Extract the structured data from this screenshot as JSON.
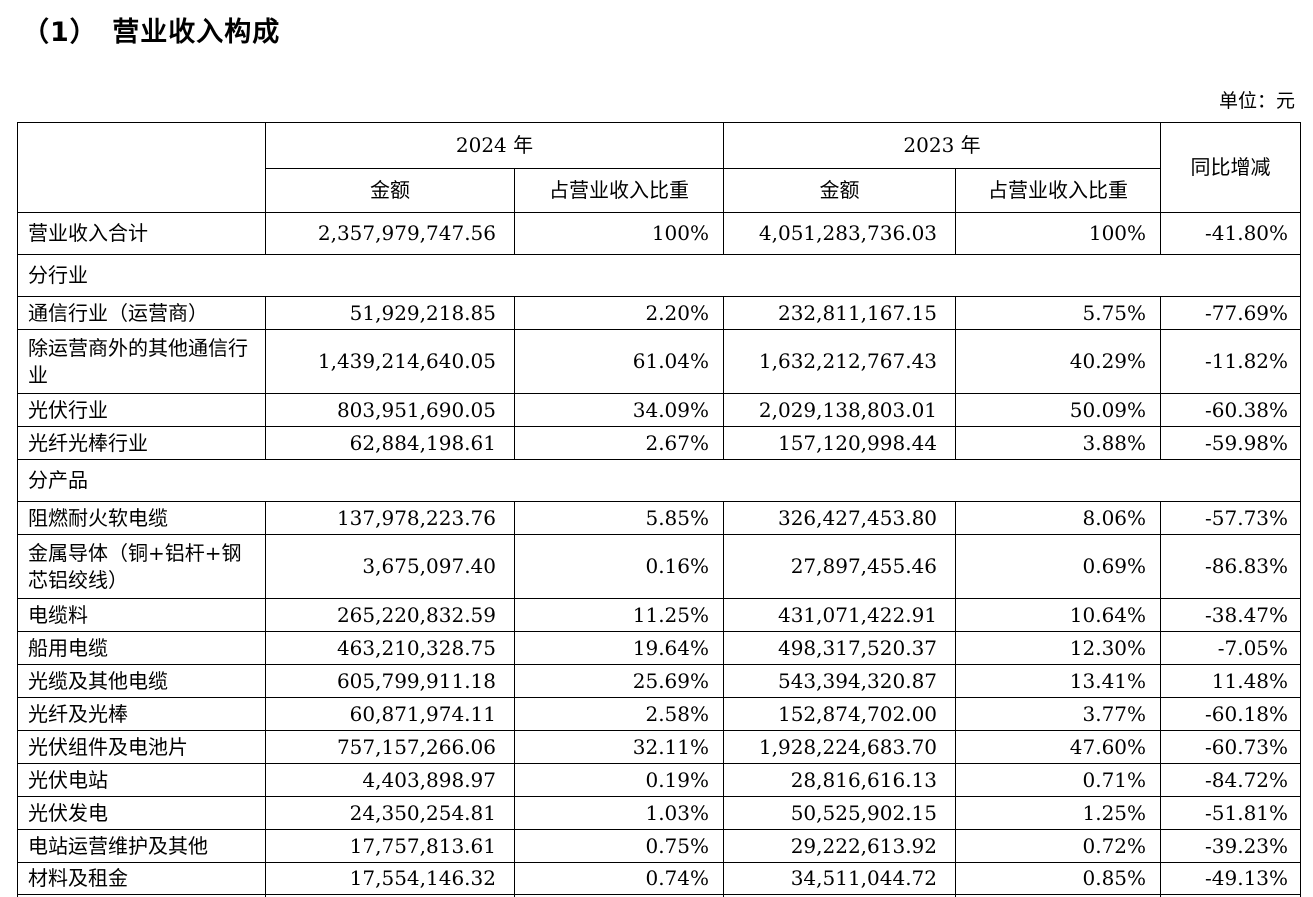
{
  "page": {
    "title": "（1）　营业收入构成",
    "unit_label": "单位：元"
  },
  "table": {
    "header": {
      "year_2024": "2024 年",
      "year_2023": "2023 年",
      "amount_2024": "金额",
      "proportion_2024": "占营业收入比重",
      "amount_2023": "金额",
      "proportion_2023": "占营业收入比重",
      "yoy": "同比增减"
    },
    "rows": [
      {
        "type": "total",
        "label": "营业收入合计",
        "a2024": "2,357,979,747.56",
        "p2024": "100%",
        "a2023": "4,051,283,736.03",
        "p2023": "100%",
        "yoy": "-41.80%"
      },
      {
        "type": "section",
        "label": "分行业"
      },
      {
        "type": "data",
        "label": "通信行业（运营商）",
        "a2024": "51,929,218.85",
        "p2024": "2.20%",
        "a2023": "232,811,167.15",
        "p2023": "5.75%",
        "yoy": "-77.69%"
      },
      {
        "type": "data",
        "label": "除运营商外的其他通信行业",
        "a2024": "1,439,214,640.05",
        "p2024": "61.04%",
        "a2023": "1,632,212,767.43",
        "p2023": "40.29%",
        "yoy": "-11.82%"
      },
      {
        "type": "data",
        "label": "光伏行业",
        "a2024": "803,951,690.05",
        "p2024": "34.09%",
        "a2023": "2,029,138,803.01",
        "p2023": "50.09%",
        "yoy": "-60.38%"
      },
      {
        "type": "data",
        "label": "光纤光棒行业",
        "a2024": "62,884,198.61",
        "p2024": "2.67%",
        "a2023": "157,120,998.44",
        "p2023": "3.88%",
        "yoy": "-59.98%"
      },
      {
        "type": "section",
        "label": "分产品"
      },
      {
        "type": "data",
        "label": "阻燃耐火软电缆",
        "a2024": "137,978,223.76",
        "p2024": "5.85%",
        "a2023": "326,427,453.80",
        "p2023": "8.06%",
        "yoy": "-57.73%"
      },
      {
        "type": "data",
        "label": "金属导体（铜+铝杆+钢芯铝绞线）",
        "a2024": "3,675,097.40",
        "p2024": "0.16%",
        "a2023": "27,897,455.46",
        "p2023": "0.69%",
        "yoy": "-86.83%"
      },
      {
        "type": "data",
        "label": "电缆料",
        "a2024": "265,220,832.59",
        "p2024": "11.25%",
        "a2023": "431,071,422.91",
        "p2023": "10.64%",
        "yoy": "-38.47%"
      },
      {
        "type": "data",
        "label": "船用电缆",
        "a2024": "463,210,328.75",
        "p2024": "19.64%",
        "a2023": "498,317,520.37",
        "p2023": "12.30%",
        "yoy": "-7.05%"
      },
      {
        "type": "data",
        "label": "光缆及其他电缆",
        "a2024": "605,799,911.18",
        "p2024": "25.69%",
        "a2023": "543,394,320.87",
        "p2023": "13.41%",
        "yoy": "11.48%"
      },
      {
        "type": "data",
        "label": "光纤及光棒",
        "a2024": "60,871,974.11",
        "p2024": "2.58%",
        "a2023": "152,874,702.00",
        "p2023": "3.77%",
        "yoy": "-60.18%"
      },
      {
        "type": "data",
        "label": "光伏组件及电池片",
        "a2024": "757,157,266.06",
        "p2024": "32.11%",
        "a2023": "1,928,224,683.70",
        "p2023": "47.60%",
        "yoy": "-60.73%"
      },
      {
        "type": "data",
        "label": "光伏电站",
        "a2024": "4,403,898.97",
        "p2024": "0.19%",
        "a2023": "28,816,616.13",
        "p2023": "0.71%",
        "yoy": "-84.72%"
      },
      {
        "type": "data",
        "label": "光伏发电",
        "a2024": "24,350,254.81",
        "p2024": "1.03%",
        "a2023": "50,525,902.15",
        "p2023": "1.25%",
        "yoy": "-51.81%"
      },
      {
        "type": "data",
        "label": "电站运营维护及其他",
        "a2024": "17,757,813.61",
        "p2024": "0.75%",
        "a2023": "29,222,613.92",
        "p2023": "0.72%",
        "yoy": "-39.23%"
      },
      {
        "type": "data",
        "label": "材料及租金",
        "a2024": "17,554,146.32",
        "p2024": "0.74%",
        "a2023": "34,511,044.72",
        "p2023": "0.85%",
        "yoy": "-49.13%"
      },
      {
        "type": "partial"
      }
    ]
  }
}
